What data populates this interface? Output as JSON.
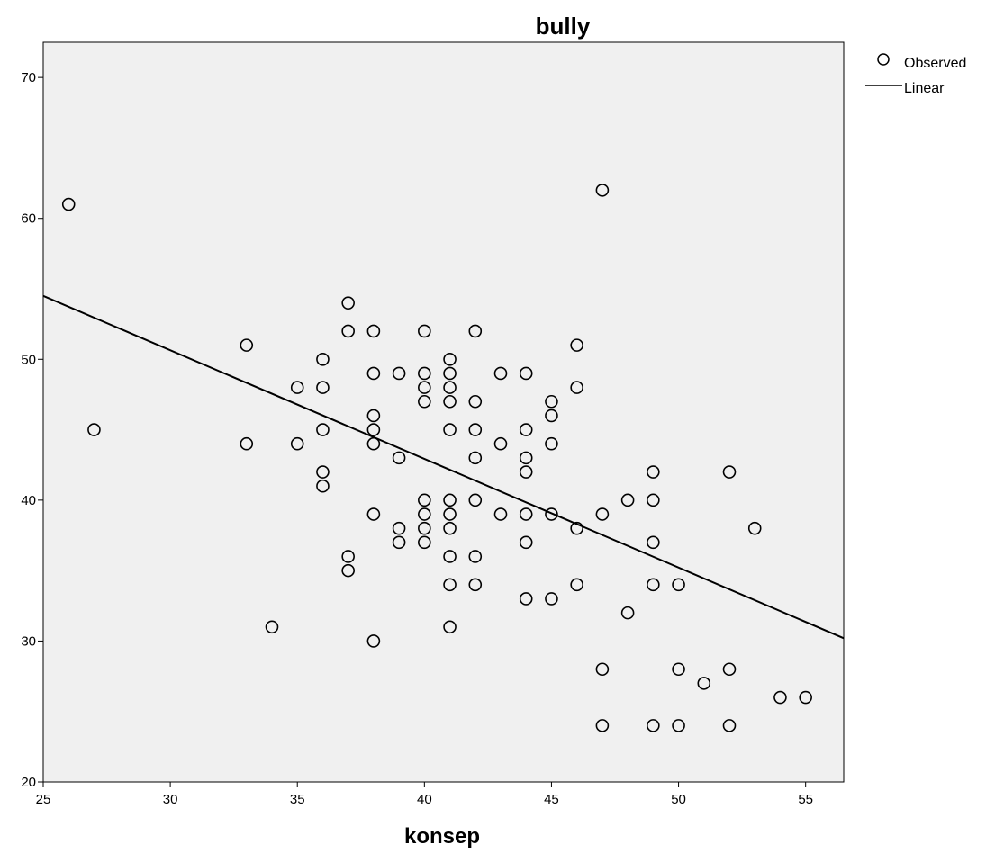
{
  "chart_data": {
    "type": "scatter",
    "title": "bully",
    "xlabel": "konsep",
    "ylabel": "",
    "xlim": [
      25,
      56.5
    ],
    "ylim": [
      20,
      72.5
    ],
    "x_ticks": [
      "25",
      "30",
      "35",
      "40",
      "45",
      "50",
      "55"
    ],
    "y_ticks": [
      "20",
      "30",
      "40",
      "50",
      "60",
      "70"
    ],
    "grid": false,
    "legend_position": "top-right",
    "legend": [
      {
        "label": "Observed",
        "marker": "circle"
      },
      {
        "label": "Linear",
        "marker": "line"
      }
    ],
    "colors": {
      "plot_background": "#f0f0f0",
      "marker": "#000000",
      "line": "#000000"
    },
    "series": [
      {
        "name": "Observed",
        "type": "scatter",
        "points": [
          [
            26,
            61
          ],
          [
            27,
            45
          ],
          [
            33,
            51
          ],
          [
            33,
            44
          ],
          [
            34,
            31
          ],
          [
            35,
            48
          ],
          [
            35,
            44
          ],
          [
            36,
            50
          ],
          [
            36,
            48
          ],
          [
            36,
            45
          ],
          [
            36,
            42
          ],
          [
            36,
            41
          ],
          [
            37,
            54
          ],
          [
            37,
            52
          ],
          [
            37,
            36
          ],
          [
            37,
            35
          ],
          [
            38,
            52
          ],
          [
            38,
            49
          ],
          [
            38,
            46
          ],
          [
            38,
            45
          ],
          [
            38,
            44
          ],
          [
            38,
            39
          ],
          [
            38,
            30
          ],
          [
            39,
            49
          ],
          [
            39,
            43
          ],
          [
            39,
            38
          ],
          [
            39,
            37
          ],
          [
            40,
            52
          ],
          [
            40,
            49
          ],
          [
            40,
            48
          ],
          [
            40,
            47
          ],
          [
            40,
            40
          ],
          [
            40,
            39
          ],
          [
            40,
            38
          ],
          [
            40,
            37
          ],
          [
            41,
            50
          ],
          [
            41,
            49
          ],
          [
            41,
            48
          ],
          [
            41,
            47
          ],
          [
            41,
            45
          ],
          [
            41,
            40
          ],
          [
            41,
            39
          ],
          [
            41,
            38
          ],
          [
            41,
            36
          ],
          [
            41,
            34
          ],
          [
            41,
            31
          ],
          [
            42,
            52
          ],
          [
            42,
            47
          ],
          [
            42,
            45
          ],
          [
            42,
            43
          ],
          [
            42,
            40
          ],
          [
            42,
            36
          ],
          [
            42,
            34
          ],
          [
            43,
            49
          ],
          [
            43,
            44
          ],
          [
            43,
            39
          ],
          [
            44,
            49
          ],
          [
            44,
            45
          ],
          [
            44,
            43
          ],
          [
            44,
            42
          ],
          [
            44,
            39
          ],
          [
            44,
            37
          ],
          [
            44,
            33
          ],
          [
            45,
            47
          ],
          [
            45,
            46
          ],
          [
            45,
            44
          ],
          [
            45,
            39
          ],
          [
            45,
            33
          ],
          [
            46,
            51
          ],
          [
            46,
            48
          ],
          [
            46,
            38
          ],
          [
            46,
            34
          ],
          [
            47,
            62
          ],
          [
            47,
            39
          ],
          [
            47,
            28
          ],
          [
            47,
            24
          ],
          [
            48,
            40
          ],
          [
            48,
            32
          ],
          [
            49,
            42
          ],
          [
            49,
            40
          ],
          [
            49,
            37
          ],
          [
            49,
            34
          ],
          [
            49,
            24
          ],
          [
            50,
            34
          ],
          [
            50,
            28
          ],
          [
            50,
            24
          ],
          [
            51,
            27
          ],
          [
            52,
            42
          ],
          [
            52,
            28
          ],
          [
            52,
            24
          ],
          [
            53,
            38
          ],
          [
            54,
            26
          ],
          [
            55,
            26
          ]
        ]
      },
      {
        "name": "Linear",
        "type": "line",
        "points": [
          [
            25,
            54.5
          ],
          [
            56.5,
            30.2
          ]
        ]
      }
    ]
  }
}
